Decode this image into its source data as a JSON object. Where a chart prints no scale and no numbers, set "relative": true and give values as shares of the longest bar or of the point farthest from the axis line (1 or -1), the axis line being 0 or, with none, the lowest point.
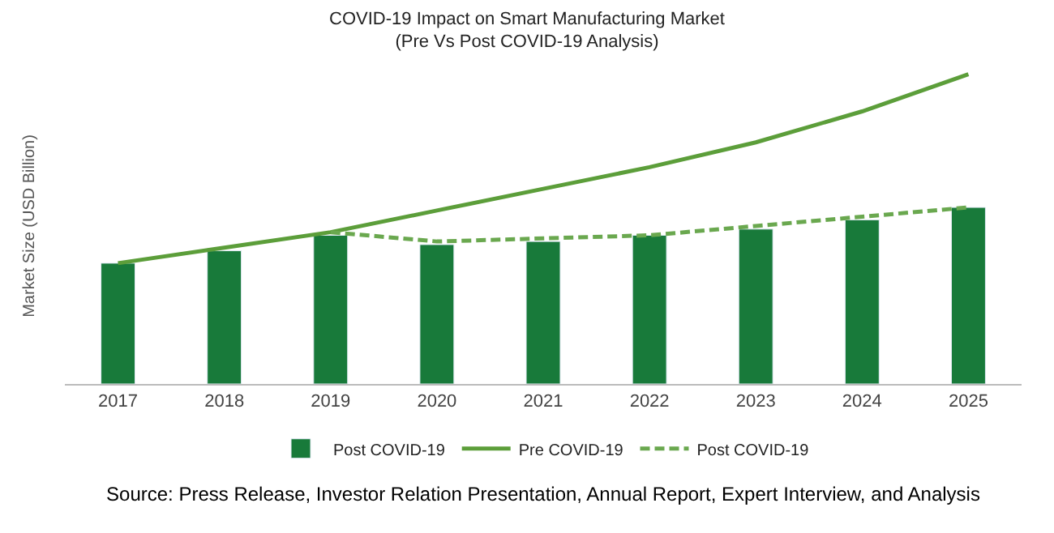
{
  "chart_data": {
    "type": "bar",
    "title": "COVID-19 Impact on Smart Manufacturing Market\n(Pre Vs Post COVID-19 Analysis)",
    "ylabel": "Market Size (USD Billion)",
    "relative": true,
    "categories": [
      "2017",
      "2018",
      "2019",
      "2020",
      "2021",
      "2022",
      "2023",
      "2024",
      "2025"
    ],
    "series": [
      {
        "name": "Post COVID-19",
        "color": "#187a3a",
        "values": [
          0.39,
          0.43,
          0.48,
          0.45,
          0.46,
          0.48,
          0.5,
          0.53,
          0.57
        ]
      },
      {
        "name": "Pre COVID-19",
        "type": "line",
        "color": "#5c9e3a",
        "line_style": "solid",
        "values": [
          0.39,
          0.44,
          0.49,
          0.56,
          0.63,
          0.7,
          0.78,
          0.88,
          1
        ]
      },
      {
        "name": "Post COVID-19",
        "type": "line",
        "color": "#6aa84f",
        "line_style": "dashed",
        "values": [
          null,
          null,
          0.49,
          0.46,
          0.47,
          0.48,
          0.51,
          0.54,
          0.57
        ]
      }
    ],
    "legend": "bottom",
    "marker": "none",
    "annotations": [
      "Source: Press Release, Investor Relation Presentation, Annual Report, Expert Interview, and Analysis"
    ]
  }
}
